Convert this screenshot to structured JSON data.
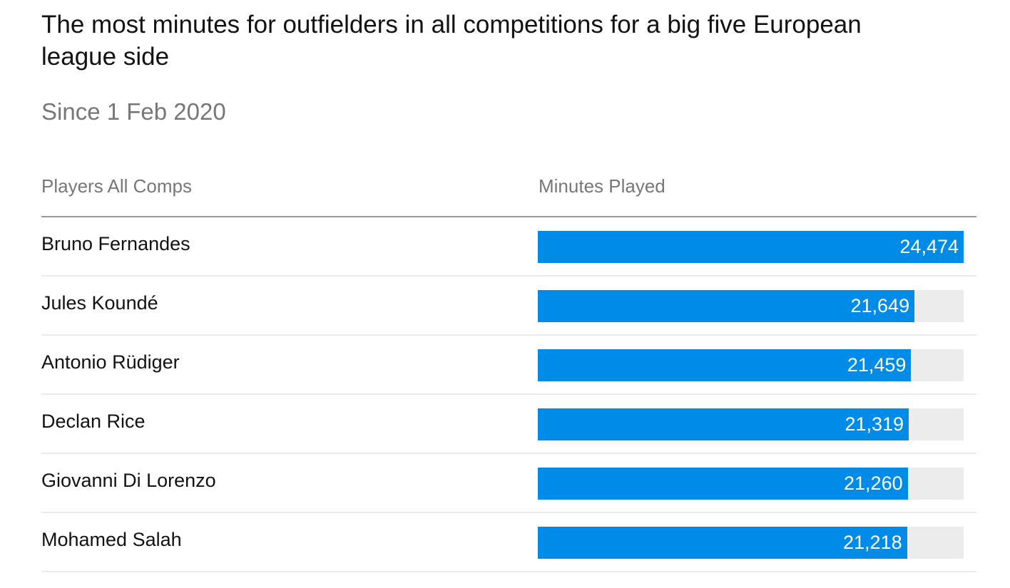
{
  "chart_data": {
    "type": "bar",
    "orientation": "horizontal",
    "title": "The most minutes for outfielders in all competitions for a big five European league side",
    "subtitle": "Since 1 Feb 2020",
    "column_headers": [
      "Players All Comps",
      "Minutes Played"
    ],
    "categories": [
      "Bruno Fernandes",
      "Jules Koundé",
      "Antonio Rüdiger",
      "Declan Rice",
      "Giovanni Di Lorenzo",
      "Mohamed Salah"
    ],
    "values": [
      24474,
      21649,
      21459,
      21319,
      21260,
      21218
    ],
    "labels": [
      "24,474",
      "21,649",
      "21,459",
      "21,319",
      "21,260",
      "21,218"
    ],
    "xlim": [
      0,
      24474
    ],
    "colors": {
      "bar": "#008be8",
      "track": "#ececec"
    }
  }
}
